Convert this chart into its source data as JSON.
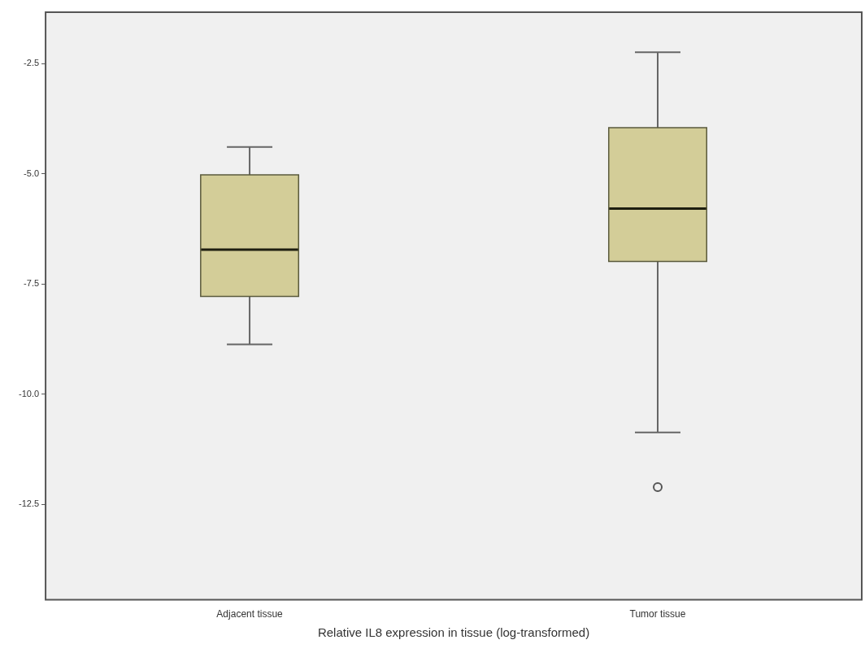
{
  "chart_data": {
    "type": "box",
    "xlabel": "Relative IL8 expression in tissue (log-transformed)",
    "categories": [
      "Adjacent tissue",
      "Tumor tissue"
    ],
    "color": "#d3cd98",
    "boxes": [
      {
        "low": -8.87,
        "q1": -7.78,
        "median": -6.72,
        "q3": -5.02,
        "high": -4.39
      },
      {
        "low": -10.87,
        "q1": -6.99,
        "median": -5.79,
        "q3": -3.95,
        "high": -2.24,
        "outliers": [
          -12.11
        ]
      }
    ],
    "ylim": [
      -14.67,
      -1.33
    ],
    "yticks": [
      {
        "value": -2.5,
        "label": "-2.5"
      },
      {
        "value": -5,
        "label": "-5.0"
      },
      {
        "value": -7.5,
        "label": "-7.5"
      },
      {
        "value": -10,
        "label": "-10.0"
      },
      {
        "value": -12.5,
        "label": "-12.5"
      }
    ],
    "grid": false,
    "legend": false
  }
}
